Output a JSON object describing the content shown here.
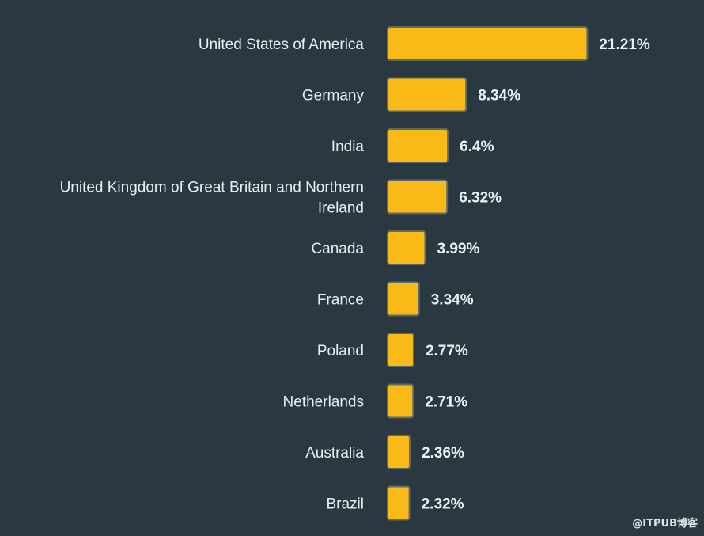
{
  "chart_data": {
    "type": "bar",
    "orientation": "horizontal",
    "categories": [
      "United States of America",
      "Germany",
      "India",
      "United Kingdom of Great Britain and Northern Ireland",
      "Canada",
      "France",
      "Poland",
      "Netherlands",
      "Australia",
      "Brazil"
    ],
    "category_lines": [
      [
        "United States of America"
      ],
      [
        "Germany"
      ],
      [
        "India"
      ],
      [
        "United Kingdom of Great Britain and Northern",
        "Ireland"
      ],
      [
        "Canada"
      ],
      [
        "France"
      ],
      [
        "Poland"
      ],
      [
        "Netherlands"
      ],
      [
        "Australia"
      ],
      [
        "Brazil"
      ]
    ],
    "values": [
      21.21,
      8.34,
      6.4,
      6.32,
      3.99,
      3.34,
      2.77,
      2.71,
      2.36,
      2.32
    ],
    "value_labels": [
      "21.21%",
      "8.34%",
      "6.4%",
      "6.32%",
      "3.99%",
      "3.34%",
      "2.77%",
      "2.71%",
      "2.36%",
      "2.32%"
    ],
    "unit": "%",
    "grid": false,
    "bar_color": "#f9b916",
    "background_color": "#2a3941"
  },
  "watermark": "@ITPUB博客"
}
